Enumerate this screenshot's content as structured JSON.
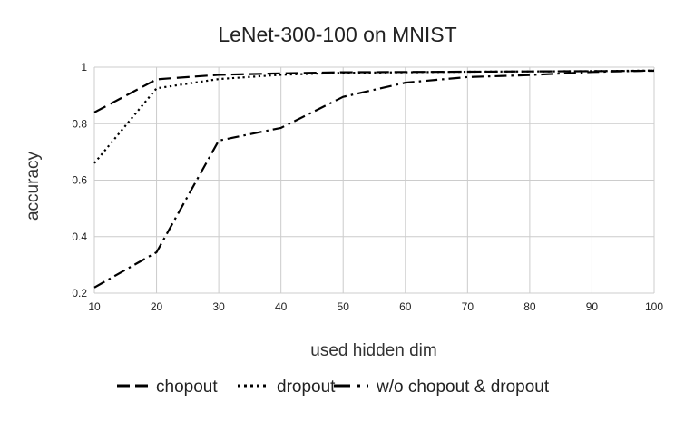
{
  "chart_data": {
    "type": "line",
    "title": "LeNet-300-100 on MNIST",
    "xlabel": "used hidden dim",
    "ylabel": "accuracy",
    "x": [
      10,
      20,
      30,
      40,
      50,
      60,
      70,
      80,
      90,
      100
    ],
    "xlim": [
      10,
      100
    ],
    "ylim": [
      0.2,
      1
    ],
    "yticks": [
      0.2,
      0.4,
      0.6,
      0.8,
      1
    ],
    "ytick_labels": [
      "0.2",
      "0.4",
      "0.6",
      "0.8",
      "1"
    ],
    "grid": true,
    "legend_position": "bottom",
    "series": [
      {
        "name": "chopout",
        "dash": "dash",
        "color": "#000000",
        "values": [
          0.84,
          0.957,
          0.973,
          0.978,
          0.982,
          0.983,
          0.984,
          0.985,
          0.986,
          0.987
        ]
      },
      {
        "name": "dropout",
        "dash": "dot",
        "color": "#000000",
        "values": [
          0.66,
          0.925,
          0.958,
          0.973,
          0.98,
          0.982,
          0.984,
          0.985,
          0.986,
          0.988
        ]
      },
      {
        "name": "w/o chopout & dropout",
        "dash": "dashdot",
        "color": "#000000",
        "values": [
          0.22,
          0.345,
          0.74,
          0.785,
          0.895,
          0.945,
          0.965,
          0.972,
          0.983,
          0.988
        ]
      }
    ]
  }
}
